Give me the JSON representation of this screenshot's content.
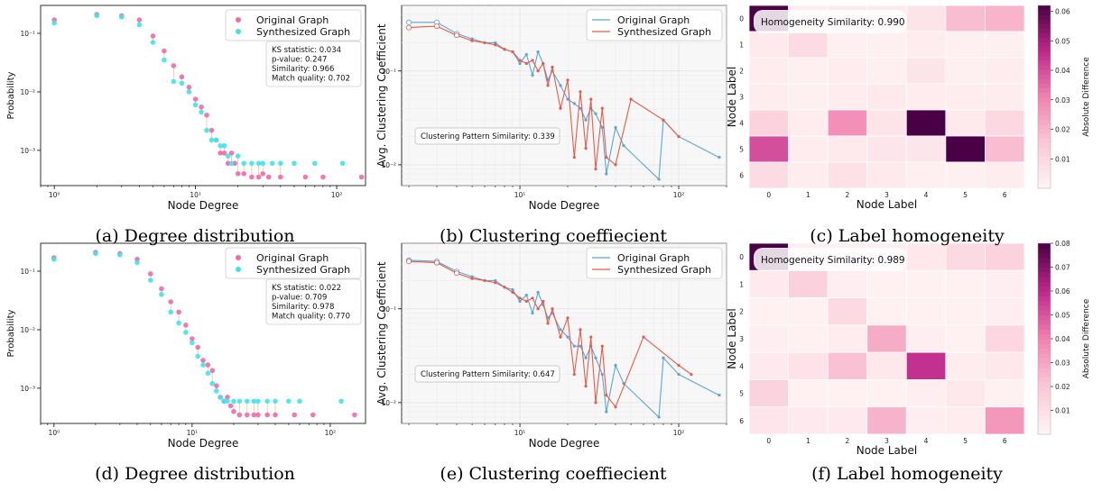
{
  "figure": {
    "captions": [
      "(a) Degree distribution",
      "(b) Clustering coeffiecient",
      "(c) Label homogeneity",
      "(d) Degree distribution",
      "(e) Clustering coeffiecient",
      "(f) Label homogeneity"
    ]
  },
  "colors": {
    "original_deg": "#f06aa8",
    "synth_deg": "#3fe3f0",
    "original_clust": "#5aa6d8",
    "synth_clust": "#e85a4a",
    "heat_max": "#4a0044",
    "heat_min": "#fff5f5"
  },
  "chart_data": [
    {
      "type": "scatter",
      "id": "a",
      "xscale": "log",
      "yscale": "log",
      "xlabel": "Node Degree",
      "ylabel": "Probability",
      "xlim": [
        0.8,
        160
      ],
      "ylim": [
        0.00025,
        0.3
      ],
      "xticks": [
        "10⁰",
        "10¹",
        "10²"
      ],
      "yticks": [
        "10⁻³",
        "10⁻²",
        "10⁻¹"
      ],
      "legend": {
        "position": "top-right"
      },
      "series": [
        {
          "name": "Original Graph",
          "x": [
            1,
            2,
            3,
            4,
            5,
            6,
            7,
            8,
            9,
            10,
            11,
            12,
            13,
            14,
            15,
            16,
            17,
            18,
            19,
            20,
            22,
            25,
            28,
            30,
            33,
            40,
            60,
            80,
            150
          ],
          "y": [
            0.17,
            0.21,
            0.2,
            0.17,
            0.09,
            0.05,
            0.028,
            0.018,
            0.012,
            0.0075,
            0.0055,
            0.004,
            0.0022,
            0.0015,
            0.0009,
            0.0009,
            0.0006,
            0.0009,
            0.0006,
            0.0004,
            0.0004,
            0.00035,
            0.00035,
            0.0004,
            0.00035,
            0.00035,
            0.00035,
            0.00035,
            0.00035
          ]
        },
        {
          "name": "Synthesized Graph",
          "x": [
            1,
            2,
            3,
            4,
            5,
            6,
            7,
            8,
            9,
            10,
            11,
            12,
            13,
            14,
            15,
            16,
            17,
            18,
            20,
            22,
            25,
            28,
            30,
            35,
            40,
            50,
            70,
            110
          ],
          "y": [
            0.15,
            0.2,
            0.19,
            0.14,
            0.07,
            0.035,
            0.015,
            0.014,
            0.01,
            0.006,
            0.0045,
            0.0022,
            0.0015,
            0.0015,
            0.0012,
            0.0012,
            0.0008,
            0.0006,
            0.0008,
            0.0006,
            0.0006,
            0.0006,
            0.0006,
            0.0006,
            0.0006,
            0.0006,
            0.0006,
            0.0006
          ]
        }
      ],
      "stats": [
        "KS statistic: 0.034",
        "p-value: 0.247",
        "Similarity: 0.966",
        "Match quality: 0.702"
      ]
    },
    {
      "type": "line",
      "id": "b",
      "xscale": "log",
      "yscale": "log",
      "xlabel": "Node Degree",
      "ylabel": "Avg. Clustering Coefficient",
      "xlim": [
        1.8,
        200
      ],
      "ylim": [
        0.006,
        0.5
      ],
      "xticks": [
        "10¹",
        "10²"
      ],
      "yticks": [
        "10⁻²",
        "10⁻¹"
      ],
      "legend": {
        "position": "top-right"
      },
      "series": [
        {
          "name": "Original Graph",
          "x": [
            2,
            3,
            4,
            5,
            6,
            7,
            8,
            9,
            10,
            11,
            12,
            13,
            14,
            15,
            16,
            18,
            20,
            22,
            24,
            26,
            28,
            30,
            33,
            35,
            40,
            45,
            75,
            80,
            100,
            180
          ],
          "y": [
            0.33,
            0.33,
            0.25,
            0.22,
            0.2,
            0.2,
            0.17,
            0.16,
            0.12,
            0.15,
            0.09,
            0.16,
            0.12,
            0.08,
            0.1,
            0.07,
            0.05,
            0.045,
            0.04,
            0.03,
            0.04,
            0.035,
            0.025,
            0.008,
            0.025,
            0.016,
            0.007,
            0.03,
            0.02,
            0.012
          ]
        },
        {
          "name": "Synthesized Graph",
          "x": [
            2,
            3,
            4,
            5,
            6,
            7,
            8,
            9,
            10,
            11,
            12,
            13,
            14,
            15,
            16,
            18,
            20,
            22,
            24,
            26,
            28,
            30,
            33,
            35,
            40,
            50,
            80,
            100
          ],
          "y": [
            0.29,
            0.3,
            0.24,
            0.21,
            0.2,
            0.19,
            0.17,
            0.16,
            0.13,
            0.12,
            0.13,
            0.1,
            0.12,
            0.07,
            0.11,
            0.04,
            0.08,
            0.012,
            0.06,
            0.015,
            0.05,
            0.009,
            0.04,
            0.012,
            0.01,
            0.05,
            0.03,
            0.02
          ]
        }
      ],
      "annotation": "Clustering Pattern Similarity: 0.339"
    },
    {
      "type": "heatmap",
      "id": "c",
      "xlabel": "Node Label",
      "ylabel": "Node Label",
      "colorbar_label": "Absolute Difference",
      "xticks": [
        "0",
        "1",
        "2",
        "3",
        "4",
        "5",
        "6"
      ],
      "yticks": [
        "0",
        "1",
        "2",
        "3",
        "4",
        "5",
        "6"
      ],
      "vmax": 0.062,
      "cbar_ticks": [
        "0.01",
        "0.02",
        "0.03",
        "0.04",
        "0.05",
        "0.06"
      ],
      "values": [
        [
          0.062,
          0.003,
          0.004,
          0.004,
          0.006,
          0.018,
          0.02
        ],
        [
          0.004,
          0.009,
          0.002,
          0.002,
          0.003,
          0.002,
          0.002
        ],
        [
          0.003,
          0.002,
          0.003,
          0.002,
          0.006,
          0.002,
          0.003
        ],
        [
          0.003,
          0.002,
          0.003,
          0.004,
          0.003,
          0.003,
          0.003
        ],
        [
          0.012,
          0.003,
          0.028,
          0.006,
          0.062,
          0.004,
          0.01
        ],
        [
          0.04,
          0.003,
          0.004,
          0.005,
          0.005,
          0.062,
          0.018
        ],
        [
          0.009,
          0.003,
          0.007,
          0.004,
          0.002,
          0.002,
          0.003
        ]
      ],
      "annotation": "Homogeneity Similarity: 0.990"
    },
    {
      "type": "scatter",
      "id": "d",
      "xscale": "log",
      "yscale": "log",
      "xlabel": "Node Degree",
      "ylabel": "Probability",
      "xlim": [
        0.8,
        180
      ],
      "ylim": [
        0.00025,
        0.3
      ],
      "xticks": [
        "10⁰",
        "10¹",
        "10²"
      ],
      "yticks": [
        "10⁻³",
        "10⁻²",
        "10⁻¹"
      ],
      "legend": {
        "position": "top-right"
      },
      "series": [
        {
          "name": "Original Graph",
          "x": [
            1,
            2,
            3,
            4,
            5,
            6,
            7,
            8,
            9,
            10,
            11,
            12,
            13,
            14,
            15,
            16,
            17,
            18,
            19,
            20,
            22,
            25,
            28,
            30,
            35,
            40,
            55,
            75,
            150
          ],
          "y": [
            0.17,
            0.21,
            0.2,
            0.16,
            0.09,
            0.05,
            0.03,
            0.02,
            0.012,
            0.007,
            0.005,
            0.003,
            0.0025,
            0.002,
            0.0011,
            0.0007,
            0.0006,
            0.0007,
            0.0005,
            0.0004,
            0.00035,
            0.00035,
            0.00035,
            0.00035,
            0.00035,
            0.00035,
            0.00035,
            0.00035,
            0.00035
          ]
        },
        {
          "name": "Synthesized Graph",
          "x": [
            1,
            2,
            3,
            4,
            5,
            6,
            7,
            8,
            9,
            10,
            11,
            12,
            13,
            14,
            15,
            16,
            17,
            18,
            20,
            22,
            25,
            28,
            30,
            35,
            40,
            50,
            60,
            120
          ],
          "y": [
            0.16,
            0.2,
            0.19,
            0.14,
            0.07,
            0.04,
            0.02,
            0.013,
            0.009,
            0.006,
            0.0035,
            0.0025,
            0.0018,
            0.0012,
            0.0009,
            0.0007,
            0.0006,
            0.0006,
            0.0006,
            0.0006,
            0.0006,
            0.0006,
            0.0006,
            0.0006,
            0.0006,
            0.0006,
            0.0006,
            0.0006
          ]
        }
      ],
      "stats": [
        "KS statistic: 0.022",
        "p-value: 0.709",
        "Similarity: 0.978",
        "Match quality: 0.770"
      ]
    },
    {
      "type": "line",
      "id": "e",
      "xscale": "log",
      "yscale": "log",
      "xlabel": "Node Degree",
      "ylabel": "Avg. Clustering Coefficient",
      "xlim": [
        1.8,
        200
      ],
      "ylim": [
        0.006,
        0.5
      ],
      "xticks": [
        "10¹",
        "10²"
      ],
      "yticks": [
        "10⁻²",
        "10⁻¹"
      ],
      "legend": {
        "position": "top-right"
      },
      "series": [
        {
          "name": "Original Graph",
          "x": [
            2,
            3,
            4,
            5,
            6,
            7,
            8,
            9,
            10,
            11,
            12,
            13,
            14,
            15,
            16,
            18,
            20,
            22,
            24,
            26,
            28,
            30,
            33,
            35,
            40,
            45,
            75,
            80,
            100,
            180
          ],
          "y": [
            0.33,
            0.32,
            0.25,
            0.22,
            0.2,
            0.2,
            0.17,
            0.16,
            0.12,
            0.14,
            0.09,
            0.15,
            0.11,
            0.08,
            0.09,
            0.06,
            0.05,
            0.04,
            0.04,
            0.03,
            0.04,
            0.03,
            0.02,
            0.008,
            0.025,
            0.016,
            0.007,
            0.03,
            0.02,
            0.012
          ]
        },
        {
          "name": "Synthesized Graph",
          "x": [
            2,
            3,
            4,
            5,
            6,
            7,
            8,
            9,
            10,
            11,
            12,
            13,
            14,
            15,
            16,
            18,
            20,
            22,
            24,
            26,
            28,
            30,
            33,
            35,
            40,
            60,
            100,
            120
          ],
          "y": [
            0.32,
            0.31,
            0.24,
            0.21,
            0.2,
            0.19,
            0.17,
            0.15,
            0.13,
            0.12,
            0.13,
            0.1,
            0.12,
            0.07,
            0.1,
            0.05,
            0.08,
            0.02,
            0.06,
            0.015,
            0.05,
            0.01,
            0.04,
            0.012,
            0.009,
            0.05,
            0.025,
            0.02
          ]
        }
      ],
      "annotation": "Clustering Pattern Similarity: 0.647"
    },
    {
      "type": "heatmap",
      "id": "f",
      "xlabel": "Node Label",
      "ylabel": "Node Label",
      "colorbar_label": "Absolute Difference",
      "xticks": [
        "0",
        "1",
        "2",
        "3",
        "4",
        "5",
        "6"
      ],
      "yticks": [
        "0",
        "1",
        "2",
        "3",
        "4",
        "5",
        "6"
      ],
      "vmax": 0.08,
      "cbar_ticks": [
        "0.01",
        "0.02",
        "0.03",
        "0.04",
        "0.05",
        "0.06",
        "0.07",
        "0.08"
      ],
      "values": [
        [
          0.08,
          0.004,
          0.004,
          0.004,
          0.006,
          0.012,
          0.015
        ],
        [
          0.005,
          0.016,
          0.003,
          0.002,
          0.002,
          0.002,
          0.003
        ],
        [
          0.002,
          0.002,
          0.012,
          0.002,
          0.002,
          0.002,
          0.003
        ],
        [
          0.003,
          0.002,
          0.004,
          0.028,
          0.003,
          0.002,
          0.014
        ],
        [
          0.005,
          0.008,
          0.022,
          0.006,
          0.058,
          0.004,
          0.006
        ],
        [
          0.015,
          0.002,
          0.002,
          0.002,
          0.003,
          0.006,
          0.002
        ],
        [
          0.007,
          0.005,
          0.005,
          0.026,
          0.003,
          0.004,
          0.034
        ]
      ],
      "annotation": "Homogeneity Similarity: 0.989"
    }
  ]
}
